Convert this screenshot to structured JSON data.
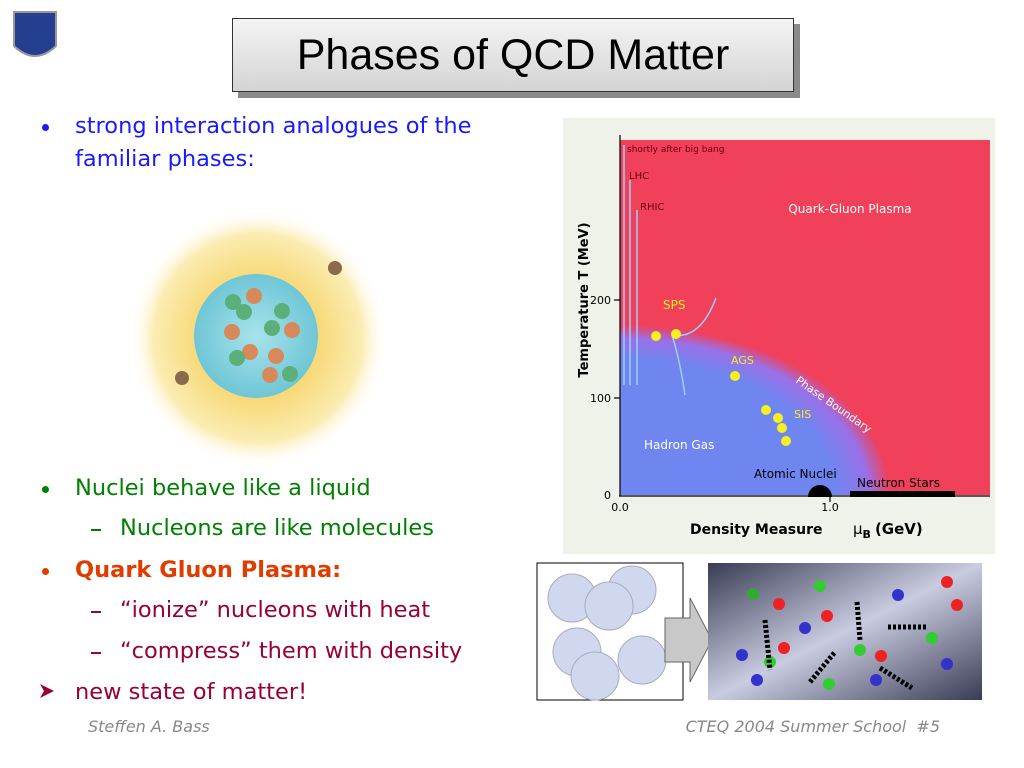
{
  "title": "Phases of QCD Matter",
  "bullets": [
    {
      "text": "strong interaction analogues of the familiar phases:"
    },
    {
      "text": "Nuclei behave like a liquid",
      "sub": [
        "Nucleons are like molecules"
      ]
    },
    {
      "text": "Quark Gluon Plasma:",
      "sub": [
        "“ionize” nucleons with heat",
        "“compress” them with density"
      ]
    },
    {
      "text": "new state of matter!"
    }
  ],
  "diagram": {
    "y_axis_label": "Temperature T (MeV)",
    "x_axis_label": "Density Measure",
    "x_unit_symbol": "μ",
    "x_unit_subscript": "B",
    "x_unit": "(GeV)",
    "yticks": [
      "200",
      "100",
      "0"
    ],
    "xticks": [
      "0.0",
      "1.0"
    ],
    "labels": {
      "big_bang": "shortly after big bang",
      "lhc": "LHC",
      "rhic": "RHIC",
      "qgp": "Quark-Gluon Plasma",
      "sps": "SPS",
      "ags": "AGS",
      "sis": "SIS",
      "boundary": "Phase Boundary",
      "hadron_gas": "Hadron Gas",
      "nuclei": "Atomic Nuclei",
      "neutron_stars": "Neutron Stars"
    }
  },
  "footer": {
    "author": "Steffen A. Bass",
    "event": "CTEQ 2004 Summer School  #5"
  }
}
